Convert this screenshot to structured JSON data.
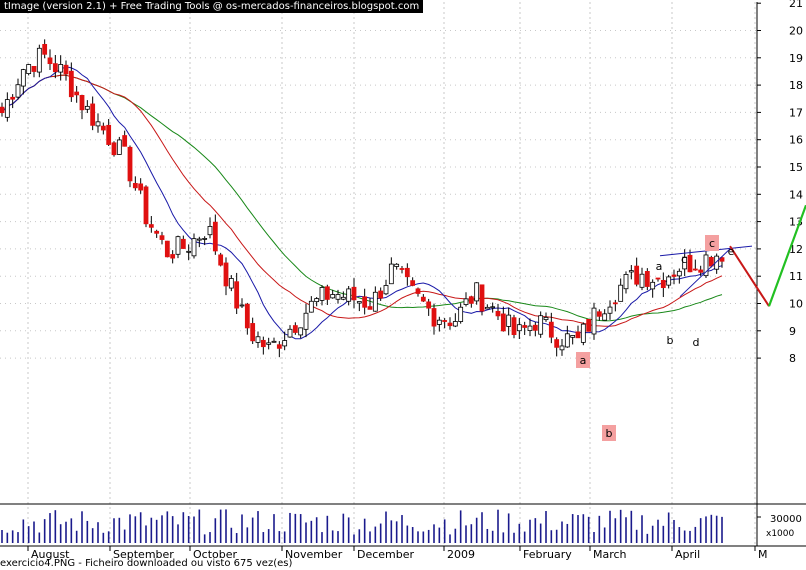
{
  "header_text": "tImage (version 2.1) + Free Trading Tools @ os-mercados-financeiros.blogspot.com",
  "footer_text": "exercicio4.PNG - Ficheiro downloaded ou visto 675 vez(es)",
  "colors": {
    "background": "#ffffff",
    "grid": "#c8c8c8",
    "bull_candle": "#ffffff",
    "bear_candle": "#e01010",
    "ma_short": "#1a1aa8",
    "ma_mid": "#c81818",
    "ma_long": "#188818",
    "projection_down": "#c81818",
    "projection_up": "#22c022",
    "wave_label_bg": "#f4a0a0",
    "volume": "#1a1a8c"
  },
  "chart_data": {
    "type": "candlestick",
    "xlabel": "",
    "ylabel": "",
    "ylim": [
      7.3,
      21.3
    ],
    "y_ticks": [
      "21",
      "20",
      "19",
      "18",
      "17",
      "16",
      "15",
      "14",
      "13",
      "12",
      "11",
      "10",
      "9",
      "8"
    ],
    "x_month_labels": [
      "August",
      "September",
      "October",
      "November",
      "December",
      "2009",
      "February",
      "March",
      "April",
      "M"
    ],
    "volume_axis_labels": [
      "30000",
      "x1000"
    ],
    "moving_averages": [
      "ma_short",
      "ma_mid",
      "ma_long"
    ],
    "wave_labels_primary": [
      "a",
      "b",
      "c"
    ],
    "wave_labels_triangle": [
      "a",
      "b",
      "c",
      "d",
      "e"
    ],
    "projection": {
      "values": [
        12.1,
        9.9,
        13.6
      ]
    },
    "ohlc_samples": [
      {
        "date": "Jul-24",
        "close": 17.0
      },
      {
        "date": "Aug-05",
        "close": 18.6
      },
      {
        "date": "Aug-12",
        "close": 19.1
      },
      {
        "date": "Aug-20",
        "close": 18.4
      },
      {
        "date": "Sep-05",
        "close": 17.2
      },
      {
        "date": "Sep-15",
        "close": 16.3
      },
      {
        "date": "Sep-26",
        "close": 15.3
      },
      {
        "date": "Oct-03",
        "close": 13.2
      },
      {
        "date": "Oct-10",
        "close": 11.9
      },
      {
        "date": "Oct-20",
        "close": 12.1
      },
      {
        "date": "Oct-28",
        "close": 12.8
      },
      {
        "date": "Nov-05",
        "close": 10.8
      },
      {
        "date": "Nov-14",
        "close": 9.0
      },
      {
        "date": "Nov-21",
        "close": 8.3
      },
      {
        "date": "Nov-28",
        "close": 9.1
      },
      {
        "date": "Dec-05",
        "close": 9.9
      },
      {
        "date": "Dec-12",
        "close": 10.4
      },
      {
        "date": "Dec-19",
        "close": 10.2
      },
      {
        "date": "Dec-29",
        "close": 10.0
      },
      {
        "date": "Jan-06",
        "close": 11.3
      },
      {
        "date": "Jan-14",
        "close": 10.3
      },
      {
        "date": "Jan-22",
        "close": 9.6
      },
      {
        "date": "Jan-30",
        "close": 9.4
      },
      {
        "date": "Feb-06",
        "close": 10.4
      },
      {
        "date": "Feb-13",
        "close": 9.7
      },
      {
        "date": "Feb-20",
        "close": 8.8
      },
      {
        "date": "Feb-27",
        "close": 9.4
      },
      {
        "date": "Mar-04",
        "close": 8.8
      },
      {
        "date": "Mar-09",
        "close": 8.6
      },
      {
        "date": "Mar-16",
        "close": 9.8
      },
      {
        "date": "Mar-23",
        "close": 10.6
      },
      {
        "date": "Mar-30",
        "close": 11.1
      },
      {
        "date": "Apr-06",
        "close": 10.9
      },
      {
        "date": "Apr-14",
        "close": 11.4
      },
      {
        "date": "Apr-20",
        "close": 11.6
      },
      {
        "date": "Apr-24",
        "close": 11.9
      }
    ]
  }
}
